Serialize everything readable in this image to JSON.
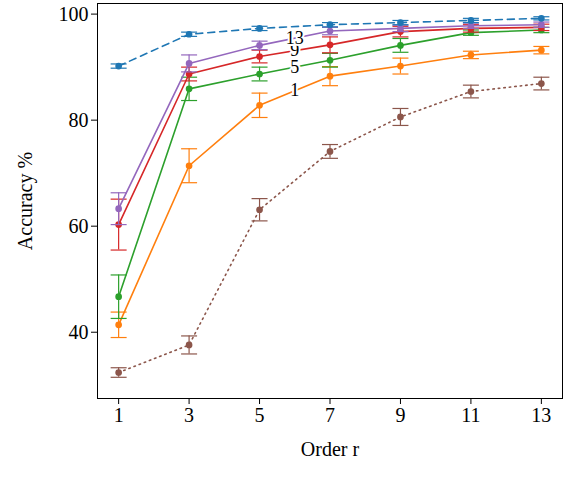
{
  "chart_data": {
    "type": "line",
    "x_label": "Order r",
    "y_label": "Accuracy %",
    "x": [
      1,
      3,
      5,
      7,
      9,
      11,
      13
    ],
    "xlim": [
      0.4,
      13.6
    ],
    "xticks": [
      1,
      3,
      5,
      7,
      9,
      11,
      13
    ],
    "ylim": [
      27.5,
      102
    ],
    "yticks": [
      40,
      60,
      80,
      100
    ],
    "series": [
      {
        "color": "#8c564b",
        "line_style": "dotted",
        "marker": "circle",
        "values": [
          32.4,
          37.6,
          63.1,
          74.1,
          80.6,
          85.4,
          86.9
        ],
        "errors": [
          0.9,
          1.7,
          2.1,
          1.3,
          1.6,
          1.2,
          1.2
        ]
      },
      {
        "name": "1",
        "color": "#ff7f0e",
        "line_style": "solid",
        "marker": "circle",
        "values": [
          41.4,
          71.4,
          82.8,
          88.3,
          90.2,
          92.3,
          93.2
        ],
        "errors": [
          2.4,
          3.2,
          2.3,
          1.8,
          1.5,
          0.7,
          0.7
        ]
      },
      {
        "name": "5",
        "color": "#2ca02c",
        "line_style": "solid",
        "marker": "circle",
        "values": [
          46.7,
          85.9,
          88.7,
          91.3,
          94.1,
          96.5,
          97.0
        ],
        "errors": [
          4.1,
          2.2,
          1.3,
          1.3,
          1.3,
          0.5,
          0.5
        ]
      },
      {
        "name": "9",
        "color": "#d62728",
        "line_style": "solid",
        "marker": "circle",
        "values": [
          60.3,
          88.7,
          92.0,
          94.2,
          96.7,
          97.3,
          97.5
        ],
        "errors": [
          4.8,
          1.3,
          1.2,
          1.5,
          1.0,
          0.7,
          0.6
        ]
      },
      {
        "name": "13",
        "color": "#9467bd",
        "line_style": "solid",
        "marker": "circle",
        "values": [
          63.3,
          90.7,
          94.1,
          96.8,
          97.3,
          97.8,
          98.0
        ],
        "errors": [
          3.0,
          1.6,
          0.8,
          0.7,
          0.6,
          0.5,
          0.5
        ]
      },
      {
        "color": "#1f77b4",
        "line_style": "dashed",
        "marker": "circle",
        "values": [
          90.2,
          96.2,
          97.3,
          98.0,
          98.4,
          98.8,
          99.2
        ],
        "errors": [
          0.4,
          0.4,
          0.4,
          0.4,
          0.4,
          0.4,
          0.3
        ]
      }
    ]
  }
}
